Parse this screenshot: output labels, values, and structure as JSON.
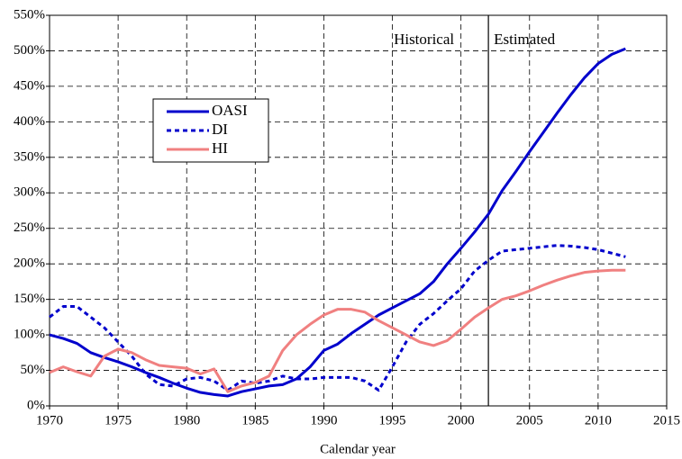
{
  "chart_data": {
    "type": "line",
    "xlabel": "Calendar year",
    "annotations": [
      "Historical",
      "Estimated"
    ],
    "divider_x": 2002,
    "x": [
      1970,
      1971,
      1972,
      1973,
      1974,
      1975,
      1976,
      1977,
      1978,
      1979,
      1980,
      1981,
      1982,
      1983,
      1984,
      1985,
      1986,
      1987,
      1988,
      1989,
      1990,
      1991,
      1992,
      1993,
      1994,
      1995,
      1996,
      1997,
      1998,
      1999,
      2000,
      2001,
      2002,
      2003,
      2004,
      2005,
      2006,
      2007,
      2008,
      2009,
      2010,
      2011,
      2012
    ],
    "series": [
      {
        "name": "OASI",
        "color": "#0000cc",
        "dash": false,
        "values": [
          100,
          95,
          88,
          75,
          68,
          62,
          55,
          47,
          40,
          32,
          25,
          19,
          16,
          14,
          20,
          24,
          28,
          30,
          38,
          55,
          78,
          87,
          102,
          115,
          128,
          138,
          148,
          158,
          175,
          200,
          222,
          245,
          270,
          303,
          330,
          358,
          385,
          412,
          438,
          462,
          482,
          495,
          503
        ]
      },
      {
        "name": "DI",
        "color": "#0000cc",
        "dash": true,
        "values": [
          125,
          140,
          140,
          125,
          110,
          90,
          70,
          45,
          30,
          28,
          38,
          40,
          35,
          22,
          35,
          32,
          35,
          42,
          38,
          38,
          40,
          40,
          40,
          35,
          22,
          55,
          90,
          115,
          130,
          148,
          165,
          190,
          205,
          218,
          220,
          222,
          224,
          226,
          225,
          223,
          220,
          215,
          210
        ]
      },
      {
        "name": "HI",
        "color": "#f08080",
        "dash": false,
        "values": [
          47,
          55,
          48,
          42,
          70,
          80,
          75,
          65,
          57,
          55,
          53,
          45,
          52,
          20,
          28,
          33,
          42,
          78,
          100,
          115,
          128,
          136,
          136,
          132,
          120,
          110,
          100,
          90,
          85,
          92,
          108,
          125,
          138,
          150,
          155,
          162,
          170,
          177,
          183,
          188,
          190,
          191,
          191
        ]
      }
    ],
    "xlim": [
      1970,
      2015
    ],
    "xticks": [
      1970,
      1975,
      1980,
      1985,
      1990,
      1995,
      2000,
      2005,
      2010,
      2015
    ],
    "ylim": [
      0,
      550
    ],
    "yticks": [
      {
        "value": 0,
        "label": "0%"
      },
      {
        "value": 50,
        "label": "50%"
      },
      {
        "value": 100,
        "label": "100%"
      },
      {
        "value": 150,
        "label": "150%"
      },
      {
        "value": 200,
        "label": "200%"
      },
      {
        "value": 250,
        "label": "250%"
      },
      {
        "value": 300,
        "label": "300%"
      },
      {
        "value": 350,
        "label": "350%"
      },
      {
        "value": 400,
        "label": "400%"
      },
      {
        "value": 450,
        "label": "450%"
      },
      {
        "value": 500,
        "label": "500%"
      },
      {
        "value": 550,
        "label": "550%"
      }
    ],
    "grid": true,
    "legend": "upper left"
  }
}
